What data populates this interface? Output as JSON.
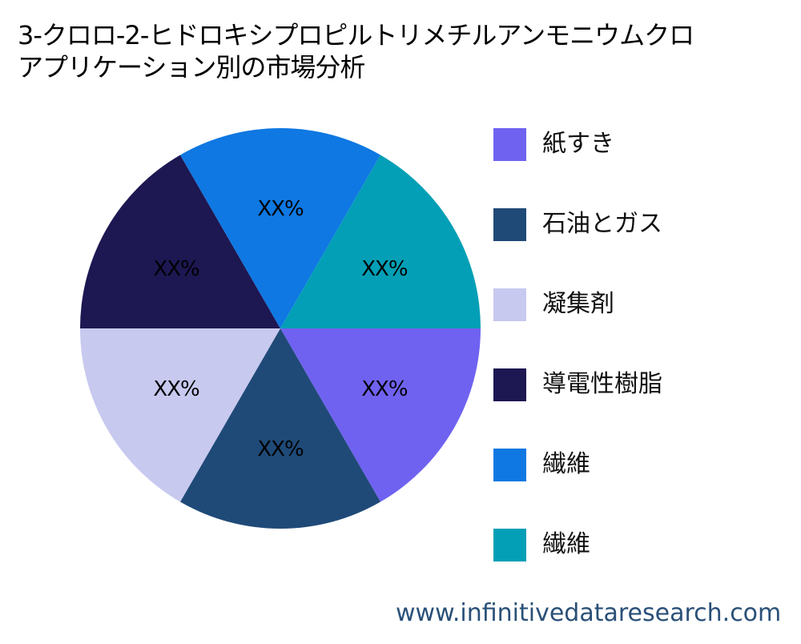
{
  "title": {
    "line1": "3-クロロ-2-ヒドロキシプロピルトリメチルアンモニウムクロ",
    "line2": "アプリケーション別の市場分析"
  },
  "chart_data": {
    "type": "pie",
    "title": "3-クロロ-2-ヒドロキシプロピルトリメチルアンモニウムクロ アプリケーション別の市場分析",
    "categories": [
      "紙すき",
      "石油とガス",
      "凝集剤",
      "導電性樹脂",
      "繊維",
      "繊維"
    ],
    "values": [
      16.67,
      16.67,
      16.67,
      16.67,
      16.67,
      16.67
    ],
    "data_labels": [
      "XX%",
      "XX%",
      "XX%",
      "XX%",
      "XX%",
      "XX%"
    ],
    "colors": [
      "#6f62f0",
      "#1f4a78",
      "#c8c9ef",
      "#1d1752",
      "#0f78e2",
      "#039fb6"
    ],
    "start_angle_deg": 0,
    "direction": "clockwise",
    "legend_position": "right"
  },
  "legend": {
    "items": [
      {
        "label": "紙すき",
        "color": "#6f62f0"
      },
      {
        "label": "石油とガス",
        "color": "#1f4a78"
      },
      {
        "label": "凝集剤",
        "color": "#c8c9ef"
      },
      {
        "label": "導電性樹脂",
        "color": "#1d1752"
      },
      {
        "label": "繊維",
        "color": "#0f78e2"
      },
      {
        "label": "繊維",
        "color": "#039fb6"
      }
    ]
  },
  "footer": {
    "url": "www.infinitivedataresearch.com"
  }
}
